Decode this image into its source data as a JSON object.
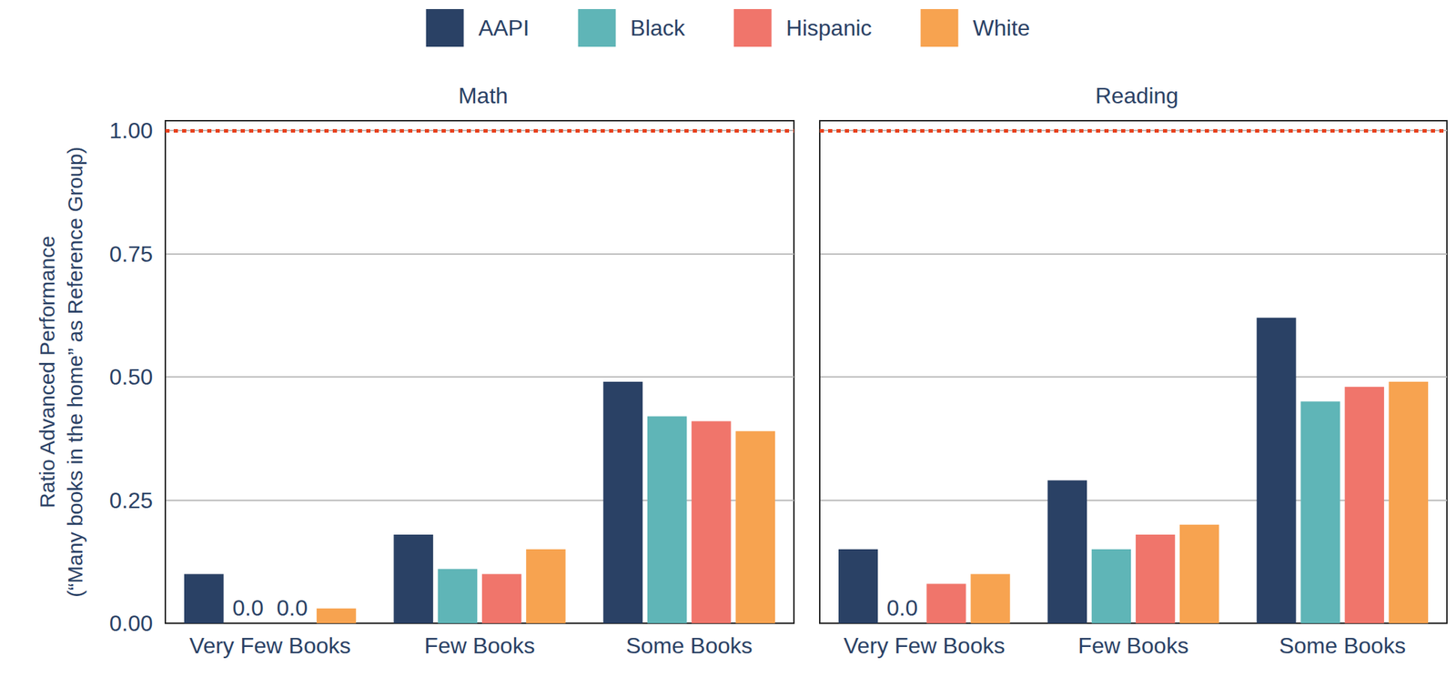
{
  "chart_data": [
    {
      "type": "bar",
      "title": "Math",
      "ylabel": "Ratio Advanced Performance\n(“Many books in the home” as Reference Group)",
      "categories": [
        "Very Few Books",
        "Few Books",
        "Some Books"
      ],
      "series": [
        {
          "name": "AAPI",
          "color": "#2a4165",
          "values": [
            0.1,
            0.18,
            0.49
          ],
          "value_labels": [
            null,
            null,
            null
          ]
        },
        {
          "name": "Black",
          "color": "#5fb5b7",
          "values": [
            0.0,
            0.11,
            0.42
          ],
          "value_labels": [
            "0.0",
            null,
            null
          ]
        },
        {
          "name": "Hispanic",
          "color": "#f0756b",
          "values": [
            0.0,
            0.1,
            0.41
          ],
          "value_labels": [
            "0.0",
            null,
            null
          ]
        },
        {
          "name": "White",
          "color": "#f7a350",
          "values": [
            0.03,
            0.15,
            0.39
          ],
          "value_labels": [
            null,
            null,
            null
          ]
        }
      ],
      "reference_line": 1,
      "ylim": [
        0,
        1.02
      ],
      "yticks": [
        {
          "value": 0,
          "label": "0.00"
        },
        0.25,
        {
          "value": 0.5,
          "label": "0.50"
        },
        0.75,
        {
          "value": 1,
          "label": "1.00"
        }
      ],
      "grid": true,
      "legend": "top",
      "data_labels": true
    },
    {
      "type": "bar",
      "title": "Reading",
      "categories": [
        "Very Few Books",
        "Few Books",
        "Some Books"
      ],
      "series": [
        {
          "name": "AAPI",
          "color": "#2a4165",
          "values": [
            0.15,
            0.29,
            0.62
          ],
          "value_labels": [
            null,
            null,
            null
          ]
        },
        {
          "name": "Black",
          "color": "#5fb5b7",
          "values": [
            0.0,
            0.15,
            0.45
          ],
          "value_labels": [
            "0.0",
            null,
            null
          ]
        },
        {
          "name": "Hispanic",
          "color": "#f0756b",
          "values": [
            0.08,
            0.18,
            0.48
          ],
          "value_labels": [
            null,
            null,
            null
          ]
        },
        {
          "name": "White",
          "color": "#f7a350",
          "values": [
            0.1,
            0.2,
            0.49
          ],
          "value_labels": [
            null,
            null,
            null
          ]
        }
      ],
      "reference_line": 1,
      "ylim": [
        0,
        1.02
      ],
      "yticks": [
        {
          "value": 0,
          "label": "0.00"
        },
        0.25,
        {
          "value": 0.5,
          "label": "0.50"
        },
        0.75,
        {
          "value": 1,
          "label": "1.00"
        }
      ],
      "grid": true,
      "data_labels": true,
      "tick_labels": "x"
    }
  ]
}
